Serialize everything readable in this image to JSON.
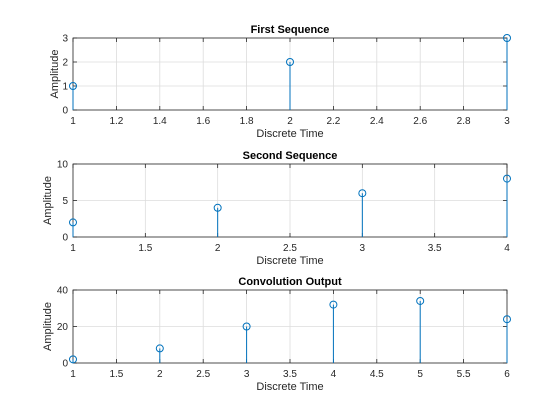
{
  "chart_data": [
    {
      "type": "stem",
      "title": "First Sequence",
      "xlabel": "Discrete Time",
      "ylabel": "Amplitude",
      "xlim": [
        1,
        3
      ],
      "ylim": [
        0,
        3
      ],
      "xticks": [
        1,
        1.2,
        1.4,
        1.6,
        1.8,
        2,
        2.2,
        2.4,
        2.6,
        2.8,
        3
      ],
      "xtick_labels": [
        "1",
        "1.2",
        "1.4",
        "1.6",
        "1.8",
        "2",
        "2.2",
        "2.4",
        "2.6",
        "2.8",
        "3"
      ],
      "yticks": [
        0,
        1,
        2,
        3
      ],
      "ytick_labels": [
        "0",
        "1",
        "2",
        "3"
      ],
      "x": [
        1,
        2,
        3
      ],
      "y": [
        1,
        2,
        3
      ],
      "grid": true,
      "color": "#0072bd"
    },
    {
      "type": "stem",
      "title": "Second Sequence",
      "xlabel": "Discrete Time",
      "ylabel": "Amplitude",
      "xlim": [
        1,
        4
      ],
      "ylim": [
        0,
        10
      ],
      "xticks": [
        1,
        1.5,
        2,
        2.5,
        3,
        3.5,
        4
      ],
      "xtick_labels": [
        "1",
        "1.5",
        "2",
        "2.5",
        "3",
        "3.5",
        "4"
      ],
      "yticks": [
        0,
        5,
        10
      ],
      "ytick_labels": [
        "0",
        "5",
        "10"
      ],
      "x": [
        1,
        2,
        3,
        4
      ],
      "y": [
        2,
        4,
        6,
        8
      ],
      "grid": true,
      "color": "#0072bd"
    },
    {
      "type": "stem",
      "title": "Convolution Output",
      "xlabel": "Discrete Time",
      "ylabel": "Amplitude",
      "xlim": [
        1,
        6
      ],
      "ylim": [
        0,
        40
      ],
      "xticks": [
        1,
        1.5,
        2,
        2.5,
        3,
        3.5,
        4,
        4.5,
        5,
        5.5,
        6
      ],
      "xtick_labels": [
        "1",
        "1.5",
        "2",
        "2.5",
        "3",
        "3.5",
        "4",
        "4.5",
        "5",
        "5.5",
        "6"
      ],
      "yticks": [
        0,
        20,
        40
      ],
      "ytick_labels": [
        "0",
        "20",
        "40"
      ],
      "x": [
        1,
        2,
        3,
        4,
        5,
        6
      ],
      "y": [
        2,
        8,
        20,
        32,
        34,
        24
      ],
      "grid": true,
      "color": "#0072bd"
    }
  ]
}
